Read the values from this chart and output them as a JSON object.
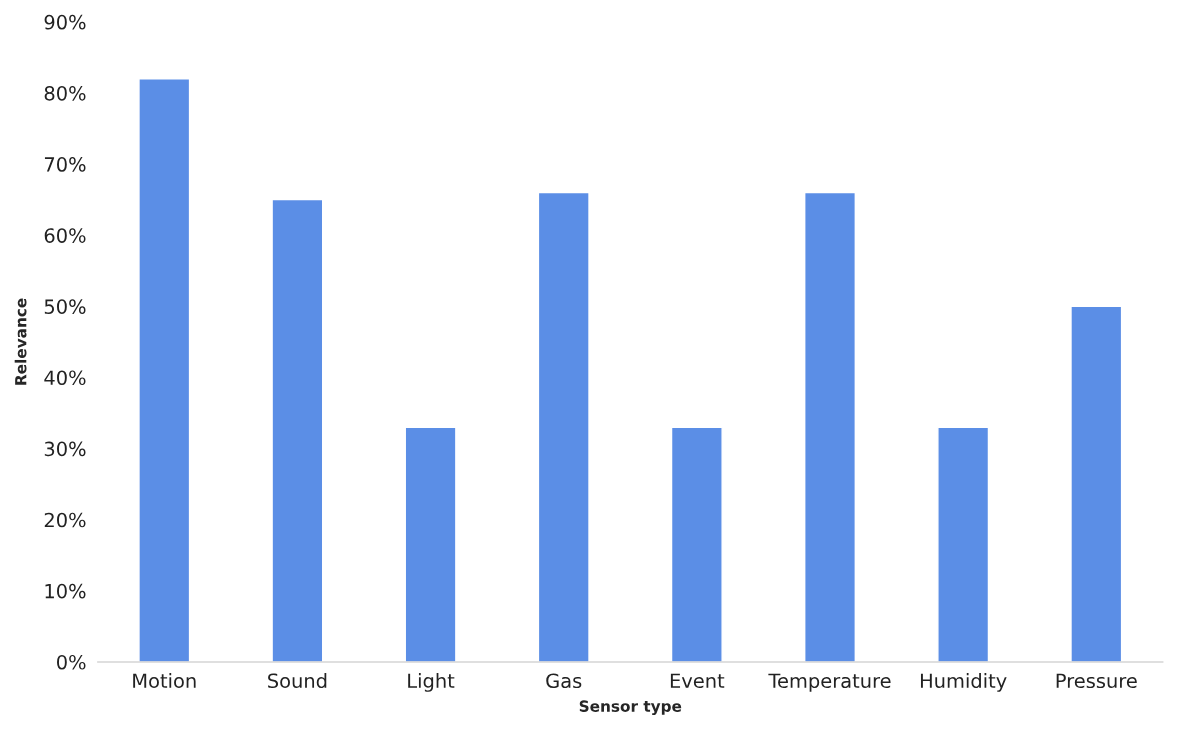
{
  "chart_data": {
    "type": "bar",
    "xlabel": "Sensor type",
    "ylabel": "Relevance",
    "categories": [
      "Motion",
      "Sound",
      "Light",
      "Gas",
      "Event",
      "Temperature",
      "Humidity",
      "Pressure"
    ],
    "values": [
      82,
      65,
      33,
      66,
      33,
      66,
      33,
      50
    ],
    "color": "#5b8ee6",
    "ylim": [
      0,
      90
    ],
    "yticks": [
      {
        "value": 0,
        "label": "0%"
      },
      {
        "value": 10,
        "label": "10%"
      },
      {
        "value": 20,
        "label": "20%"
      },
      {
        "value": 30,
        "label": "30%"
      },
      {
        "value": 40,
        "label": "40%"
      },
      {
        "value": 50,
        "label": "50%"
      },
      {
        "value": 60,
        "label": "60%"
      },
      {
        "value": 70,
        "label": "70%"
      },
      {
        "value": 80,
        "label": "80%"
      },
      {
        "value": 90,
        "label": "90%"
      }
    ],
    "grid": false,
    "legend": false
  }
}
